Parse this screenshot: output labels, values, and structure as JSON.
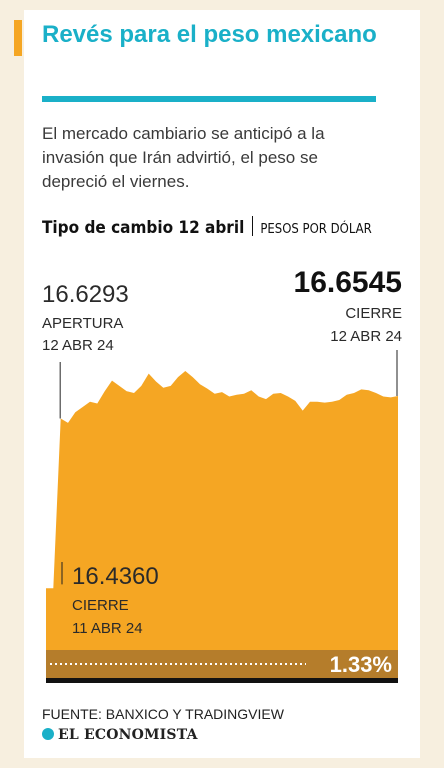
{
  "title": "Revés para el peso mexicano",
  "lead": "El mercado cambiario se anticipó a la invasión que Irán advirtió, el peso se depreció el viernes.",
  "subtitle": "Tipo de cambio 12 abril",
  "unit": "PESOS POR DÓLAR",
  "footer": "FUENTE: BANXICO Y TRADINGVIEW",
  "logo": "EL ECONOMISTA",
  "colors": {
    "accent_blue": "#1ab0c8",
    "area_orange": "#f5a623",
    "band_dark": "#b57d2b"
  },
  "chart_data": {
    "type": "area",
    "title": "Tipo de cambio 12 abril",
    "ylabel": "PESOS POR DÓLAR",
    "ylim": [
      16.4,
      16.7
    ],
    "series": [
      {
        "values": [
          16.436,
          16.436,
          16.629,
          16.624,
          16.636,
          16.642,
          16.648,
          16.646,
          16.66,
          16.672,
          16.666,
          16.66,
          16.658,
          16.666,
          16.68,
          16.671,
          16.664,
          16.666,
          16.676,
          16.683,
          16.676,
          16.668,
          16.663,
          16.657,
          16.659,
          16.654,
          16.656,
          16.657,
          16.661,
          16.654,
          16.651,
          16.657,
          16.658,
          16.654,
          16.649,
          16.638,
          16.648,
          16.648,
          16.647,
          16.648,
          16.65,
          16.656,
          16.658,
          16.662,
          16.661,
          16.658,
          16.654,
          16.653,
          16.6545
        ]
      }
    ],
    "annotations": {
      "open": {
        "value": "16.6293",
        "label": "APERTURA",
        "date": "12 ABR 24"
      },
      "close": {
        "value": "16.6545",
        "label": "CIERRE",
        "date": "12 ABR 24"
      },
      "prev_close": {
        "value": "16.4360",
        "label": "CIERRE",
        "date": "11 ABR 24"
      },
      "change": "1.33%"
    }
  }
}
